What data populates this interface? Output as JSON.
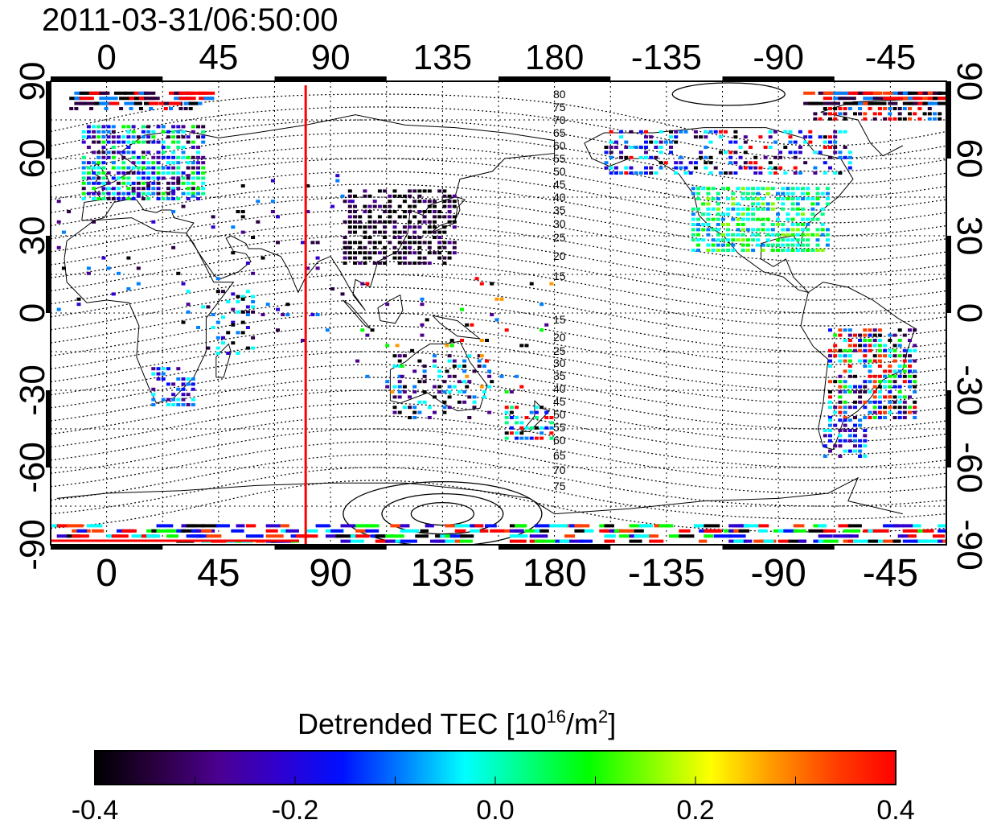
{
  "timestamp": "2011-03-31/06:50:00",
  "map": {
    "lon_ticks": [
      "0",
      "45",
      "90",
      "135",
      "180",
      "-135",
      "-90",
      "-45"
    ],
    "lat_ticks": [
      "90",
      "60",
      "30",
      "0",
      "-30",
      "-60",
      "-90"
    ],
    "meridian_marker_longitude": 80,
    "contour_labels": [
      "80",
      "75",
      "70",
      "65",
      "60",
      "55",
      "50",
      "45",
      "40",
      "35",
      "30",
      "25",
      "20",
      "15",
      "15",
      "20",
      "25",
      "30",
      "35",
      "40",
      "45",
      "50",
      "55",
      "60",
      "65",
      "70",
      "75"
    ]
  },
  "colorbar": {
    "title_main": "Detrended TEC  [10",
    "title_exp1": "16",
    "title_mid": "/m",
    "title_exp2": "2",
    "title_end": "]",
    "ticks": [
      "-0.4",
      "-0.2",
      "0.0",
      "0.2",
      "0.4"
    ],
    "range": [
      -0.4,
      0.4
    ],
    "colors": [
      "#000000",
      "#2a0040",
      "#4b0090",
      "#3000d0",
      "#0010ff",
      "#0080ff",
      "#00ffff",
      "#00ff80",
      "#00ff00",
      "#80ff00",
      "#ffff00",
      "#ff9900",
      "#ff4000",
      "#ff0000"
    ]
  }
}
